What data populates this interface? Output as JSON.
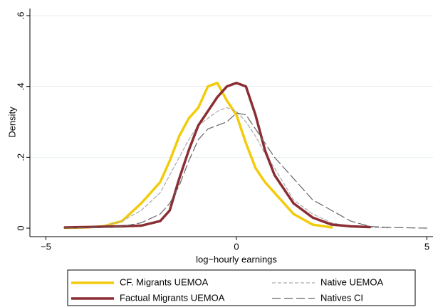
{
  "chart_data": {
    "type": "line",
    "x_label": "log−hourly earnings",
    "y_label": "Density",
    "x": [
      -4.5,
      -4,
      -3.5,
      -3,
      -2.5,
      -2,
      -1.75,
      -1.5,
      -1.25,
      -1,
      -0.75,
      -0.5,
      -0.25,
      0,
      0.25,
      0.5,
      0.75,
      1,
      1.5,
      2,
      2.5,
      3,
      3.5,
      4,
      4.5,
      5
    ],
    "series": [
      {
        "name": "CF. Migrants UEMOA",
        "color": "#f2cc0c",
        "style": "solid",
        "width": 3.5,
        "values": [
          0.001,
          0.002,
          0.005,
          0.02,
          0.07,
          0.13,
          0.19,
          0.26,
          0.31,
          0.34,
          0.4,
          0.41,
          0.36,
          0.32,
          0.24,
          0.17,
          0.13,
          0.1,
          0.04,
          0.01,
          0.002,
          null,
          null,
          null,
          null,
          null
        ]
      },
      {
        "name": "Native UEMOA",
        "color": "#aaaaaa",
        "style": "short-dash",
        "width": 1.2,
        "values": [
          0.001,
          0.002,
          0.005,
          0.02,
          0.05,
          0.1,
          0.15,
          0.2,
          0.25,
          0.29,
          0.31,
          0.33,
          0.34,
          0.33,
          0.3,
          0.26,
          0.21,
          0.17,
          0.08,
          0.04,
          0.015,
          0.005,
          0.002,
          0.001,
          null,
          null
        ]
      },
      {
        "name": "Factual Migrants UEMOA",
        "color": "#8b2e34",
        "style": "solid",
        "width": 3.5,
        "values": [
          0.002,
          0.003,
          0.004,
          0.005,
          0.007,
          0.02,
          0.05,
          0.14,
          0.22,
          0.29,
          0.33,
          0.37,
          0.4,
          0.41,
          0.4,
          0.32,
          0.22,
          0.15,
          0.07,
          0.03,
          0.01,
          0.005,
          0.003,
          null,
          null,
          null
        ]
      },
      {
        "name": "Natives CI",
        "color": "#666666",
        "style": "long-dash",
        "width": 1.2,
        "values": [
          0.001,
          0.001,
          0.002,
          0.005,
          0.015,
          0.04,
          0.07,
          0.12,
          0.19,
          0.25,
          0.28,
          0.29,
          0.3,
          0.325,
          0.32,
          0.28,
          0.24,
          0.2,
          0.14,
          0.08,
          0.05,
          0.02,
          0.005,
          0.002,
          0.001,
          0
        ]
      }
    ],
    "xlim": [
      -5.42,
      5.16
    ],
    "ylim": [
      -0.024,
      0.62
    ],
    "xticks": [
      {
        "value": -5,
        "label": "−5"
      },
      0,
      5
    ],
    "yticks": [
      0,
      {
        "value": 0.2,
        "label": ".2"
      },
      {
        "value": 0.4,
        "label": ".4"
      },
      {
        "value": 0.6,
        "label": ".6"
      }
    ],
    "grid": true,
    "legend": "bottom"
  }
}
